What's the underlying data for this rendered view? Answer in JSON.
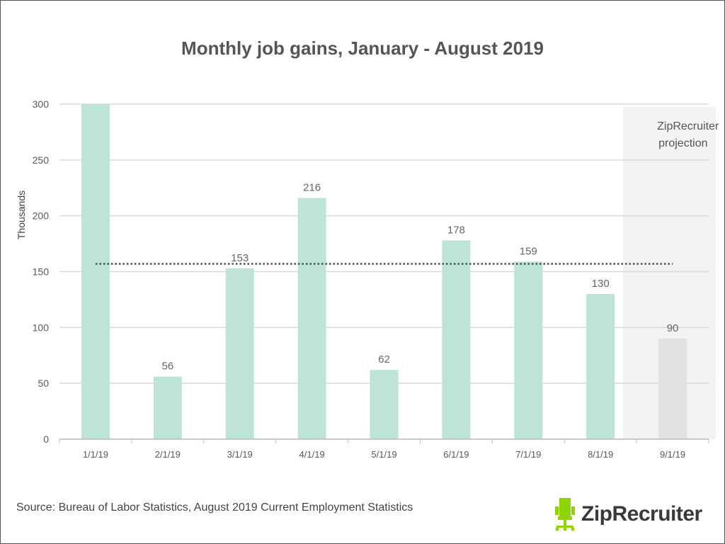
{
  "chart_data": {
    "type": "bar",
    "title": "Monthly job gains, January - August 2019",
    "ylabel": "Thousands",
    "xlabel": "",
    "ylim": [
      0,
      300
    ],
    "yticks": [
      0,
      50,
      100,
      150,
      200,
      250,
      300
    ],
    "grid": true,
    "categories": [
      "1/1/19",
      "2/1/19",
      "3/1/19",
      "4/1/19",
      "5/1/19",
      "6/1/19",
      "7/1/19",
      "8/1/19",
      "9/1/19"
    ],
    "values": [
      300,
      56,
      153,
      216,
      62,
      178,
      159,
      130,
      90
    ],
    "data_labels": [
      "",
      "56",
      "153",
      "216",
      "62",
      "178",
      "159",
      "130",
      "90"
    ],
    "projected": [
      false,
      false,
      false,
      false,
      false,
      false,
      false,
      false,
      true
    ],
    "average_line": 157,
    "annotation": "ZipRecruiter projection",
    "colors": {
      "bar": "#bde4d6",
      "projection_bar": "#e2e2e2",
      "projection_bg": "#f3f3f3",
      "average_line": "#44505a"
    }
  },
  "source": "Source: Bureau of Labor Statistics, August 2019 Current Employment Statistics",
  "logo": {
    "text": "ZipRecruiter",
    "color": "#8fd400"
  }
}
